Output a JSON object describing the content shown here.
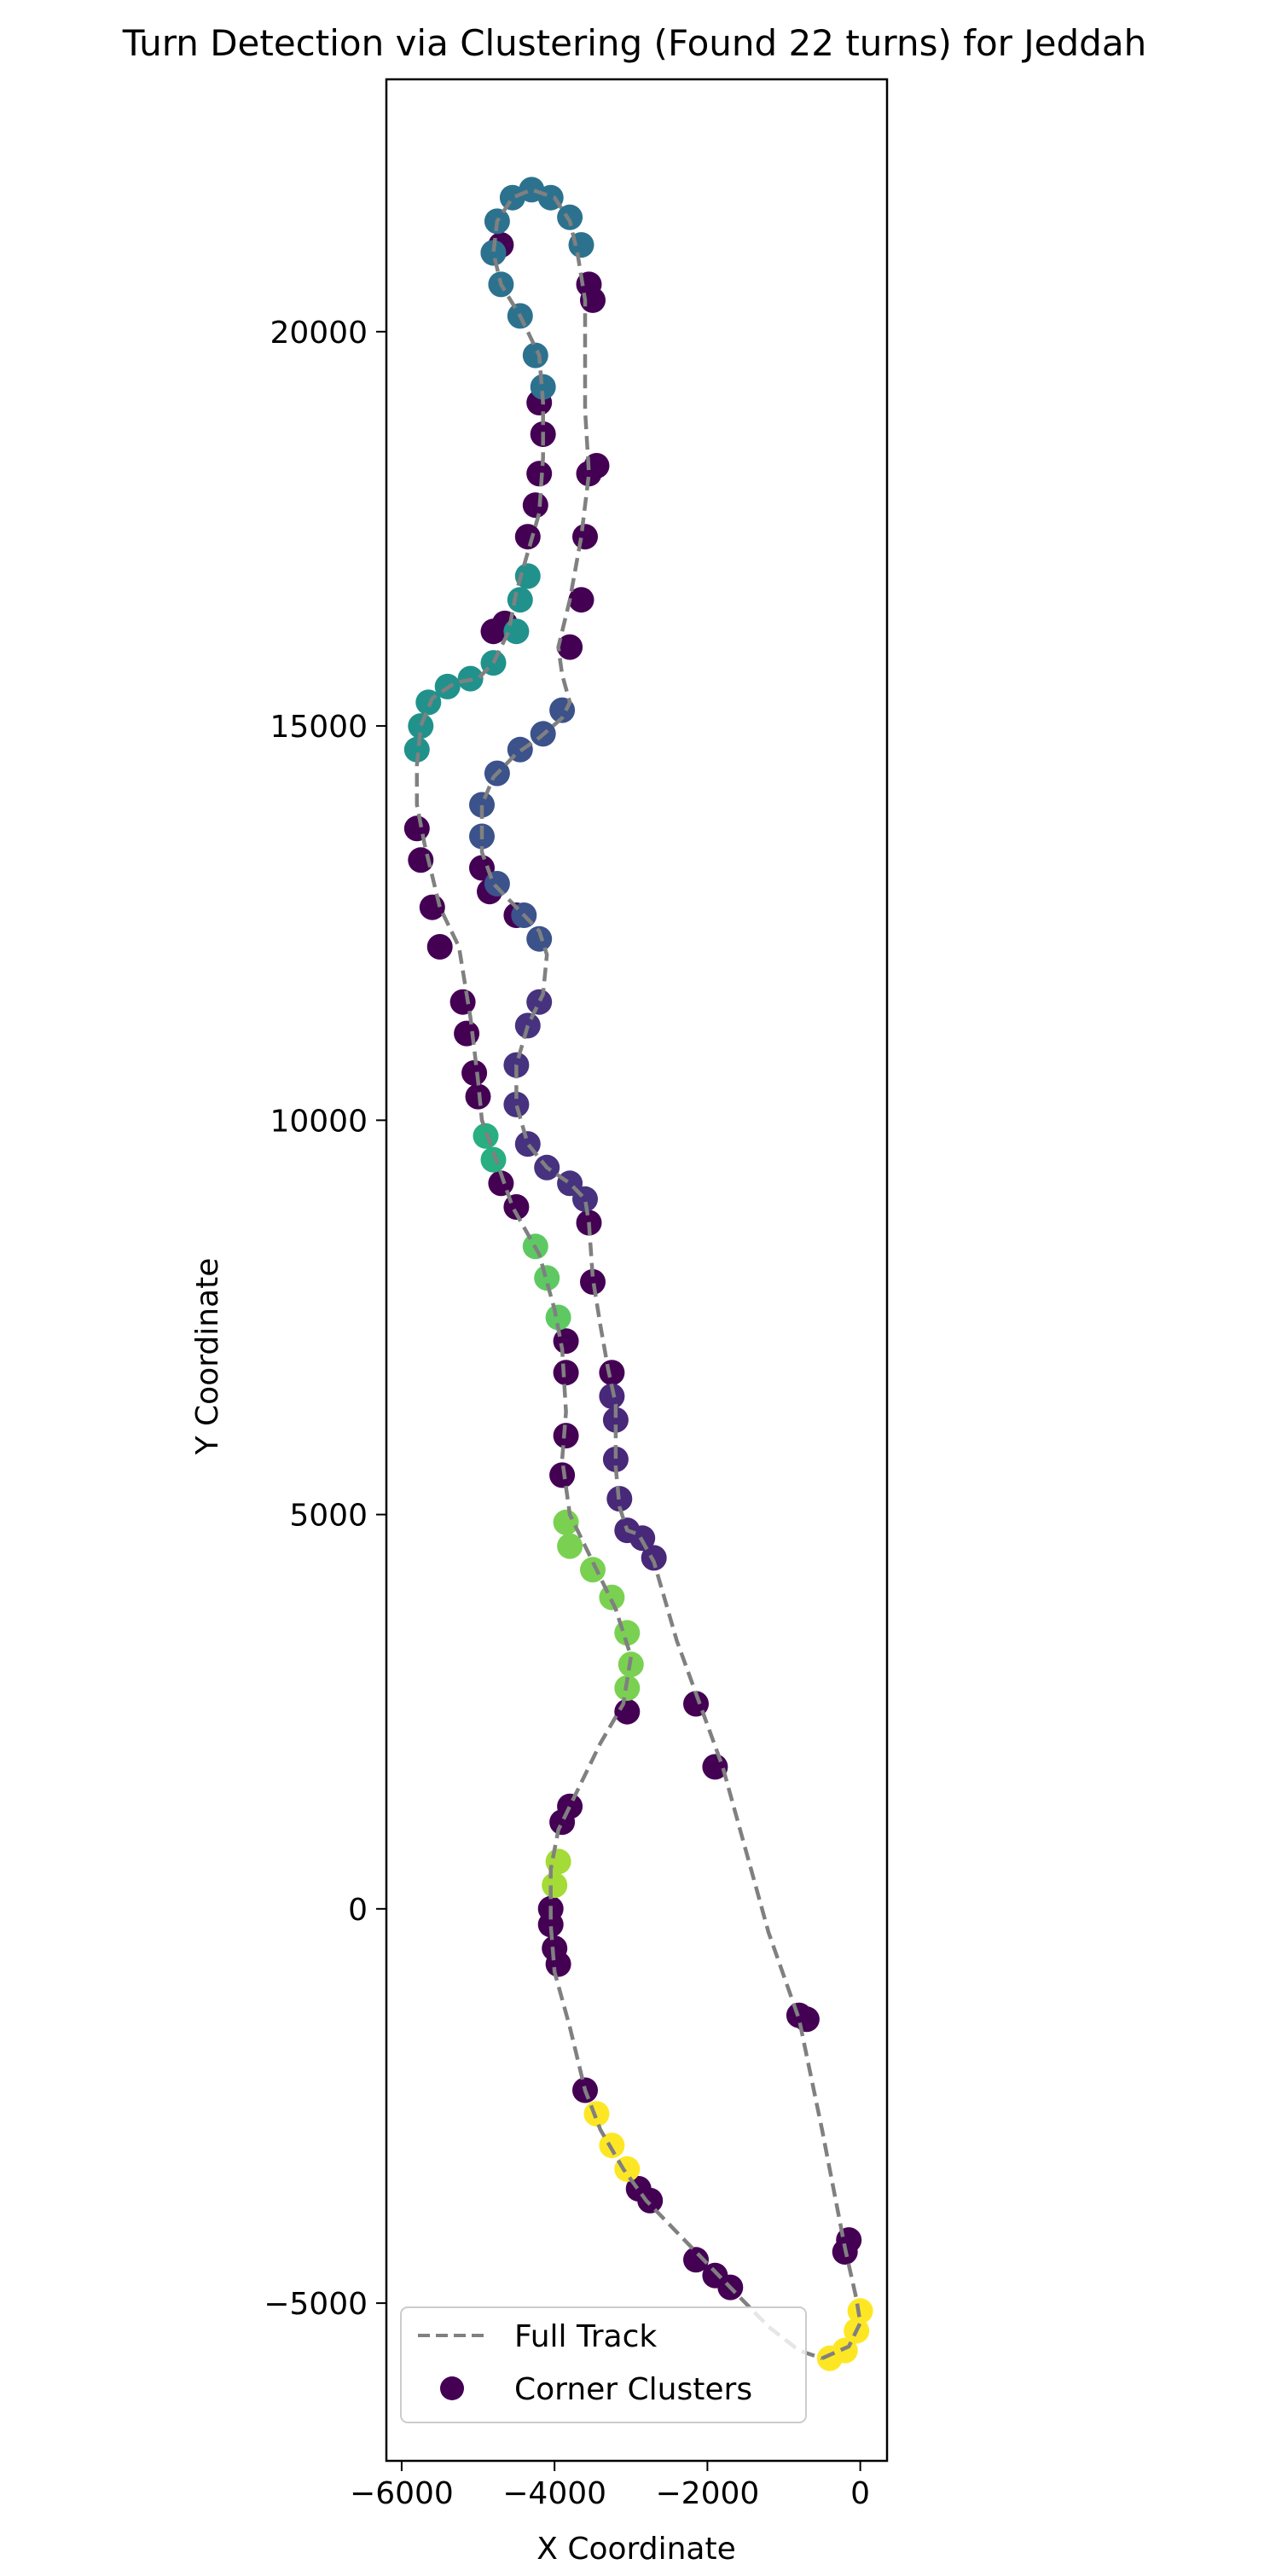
{
  "chart_data": {
    "type": "scatter",
    "title": "Turn Detection via Clustering (Found 22 turns) for Jeddah",
    "xlabel": "X Coordinate",
    "ylabel": "Y Coordinate",
    "xlim": [
      -6200,
      350
    ],
    "ylim": [
      -7000,
      23200
    ],
    "xticks": [
      -6000,
      -4000,
      -2000,
      0
    ],
    "xtick_labels": [
      "−6000",
      "−4000",
      "−2000",
      "0"
    ],
    "yticks": [
      -5000,
      0,
      5000,
      10000,
      15000,
      20000
    ],
    "ytick_labels": [
      "−5000",
      "0",
      "5000",
      "10000",
      "15000",
      "20000"
    ],
    "grid": false,
    "legend": {
      "placement": "lower-left",
      "entries": [
        {
          "label": "Full Track",
          "kind": "dashed-line",
          "color": "#808080"
        },
        {
          "label": "Corner Clusters",
          "kind": "marker",
          "color": "#440154"
        }
      ]
    },
    "track": {
      "name": "Full Track",
      "color": "#808080",
      "points": [
        [
          -500,
          -5700
        ],
        [
          -150,
          -5550
        ],
        [
          0,
          -5250
        ],
        [
          -50,
          -4950
        ],
        [
          -200,
          -4300
        ],
        [
          -500,
          -2800
        ],
        [
          -800,
          -1400
        ],
        [
          -1200,
          -300
        ],
        [
          -1800,
          1800
        ],
        [
          -2100,
          2600
        ],
        [
          -2400,
          3400
        ],
        [
          -2700,
          4400
        ],
        [
          -2900,
          4750
        ],
        [
          -3050,
          4800
        ],
        [
          -3150,
          5100
        ],
        [
          -3200,
          5600
        ],
        [
          -3200,
          6400
        ],
        [
          -3300,
          6850
        ],
        [
          -3400,
          7400
        ],
        [
          -3500,
          8000
        ],
        [
          -3550,
          8700
        ],
        [
          -3600,
          9000
        ],
        [
          -3800,
          9200
        ],
        [
          -4100,
          9400
        ],
        [
          -4350,
          9700
        ],
        [
          -4500,
          10200
        ],
        [
          -4500,
          10700
        ],
        [
          -4350,
          11200
        ],
        [
          -4150,
          11600
        ],
        [
          -4100,
          12100
        ],
        [
          -4200,
          12400
        ],
        [
          -4500,
          12700
        ],
        [
          -4800,
          13000
        ],
        [
          -4950,
          13400
        ],
        [
          -4950,
          14000
        ],
        [
          -4800,
          14350
        ],
        [
          -4500,
          14650
        ],
        [
          -4200,
          14850
        ],
        [
          -3900,
          15100
        ],
        [
          -3800,
          15300
        ],
        [
          -3900,
          15650
        ],
        [
          -3950,
          16000
        ],
        [
          -3800,
          16600
        ],
        [
          -3650,
          17400
        ],
        [
          -3550,
          18200
        ],
        [
          -3600,
          19000
        ],
        [
          -3600,
          19800
        ],
        [
          -3600,
          20400
        ],
        [
          -3700,
          21000
        ],
        [
          -3800,
          21400
        ],
        [
          -4000,
          21700
        ],
        [
          -4300,
          21800
        ],
        [
          -4550,
          21700
        ],
        [
          -4750,
          21400
        ],
        [
          -4800,
          21000
        ],
        [
          -4700,
          20600
        ],
        [
          -4450,
          20200
        ],
        [
          -4200,
          19700
        ],
        [
          -4150,
          19100
        ],
        [
          -4150,
          18400
        ],
        [
          -4200,
          17700
        ],
        [
          -4350,
          17200
        ],
        [
          -4500,
          16700
        ],
        [
          -4600,
          16200
        ],
        [
          -4800,
          15800
        ],
        [
          -5000,
          15600
        ],
        [
          -5300,
          15550
        ],
        [
          -5600,
          15350
        ],
        [
          -5750,
          15000
        ],
        [
          -5800,
          14500
        ],
        [
          -5800,
          14000
        ],
        [
          -5700,
          13500
        ],
        [
          -5500,
          12700
        ],
        [
          -5250,
          12200
        ],
        [
          -5100,
          11300
        ],
        [
          -5000,
          10500
        ],
        [
          -4950,
          10000
        ],
        [
          -4800,
          9600
        ],
        [
          -4550,
          8900
        ],
        [
          -4200,
          8300
        ],
        [
          -4000,
          7600
        ],
        [
          -3900,
          7100
        ],
        [
          -3850,
          6300
        ],
        [
          -3900,
          5700
        ],
        [
          -3800,
          5000
        ],
        [
          -3500,
          4400
        ],
        [
          -3200,
          3800
        ],
        [
          -3000,
          3200
        ],
        [
          -3100,
          2600
        ],
        [
          -3400,
          2100
        ],
        [
          -3700,
          1500
        ],
        [
          -3950,
          1000
        ],
        [
          -4050,
          500
        ],
        [
          -4050,
          -200
        ],
        [
          -4000,
          -800
        ],
        [
          -3800,
          -1500
        ],
        [
          -3600,
          -2300
        ],
        [
          -3400,
          -2800
        ],
        [
          -3100,
          -3300
        ],
        [
          -2800,
          -3700
        ],
        [
          -2400,
          -4100
        ],
        [
          -2000,
          -4500
        ],
        [
          -1600,
          -4900
        ],
        [
          -1200,
          -5300
        ],
        [
          -800,
          -5600
        ],
        [
          -500,
          -5700
        ]
      ]
    },
    "clusters": {
      "name": "Corner Clusters",
      "colormap": "viridis",
      "label_count": 23,
      "groups": [
        {
          "label": 0,
          "color": "#440154",
          "points": [
            [
              -700,
              -1400
            ],
            [
              -800,
              -1350
            ],
            [
              -150,
              -4200
            ],
            [
              -200,
              -4350
            ],
            [
              -1700,
              -4800
            ],
            [
              -1900,
              -4650
            ],
            [
              -2150,
              -4450
            ],
            [
              -2750,
              -3700
            ],
            [
              -2900,
              -3550
            ],
            [
              -3600,
              -2300
            ],
            [
              -4000,
              -500
            ],
            [
              -4050,
              -200
            ],
            [
              -4050,
              0
            ],
            [
              -3950,
              -700
            ],
            [
              -1900,
              1800
            ],
            [
              -2150,
              2600
            ],
            [
              -3900,
              1100
            ],
            [
              -3800,
              1300
            ],
            [
              -3050,
              2500
            ],
            [
              -3250,
              6800
            ],
            [
              -3500,
              7950
            ],
            [
              -3550,
              8700
            ],
            [
              -3850,
              7200
            ],
            [
              -3850,
              6800
            ],
            [
              -3850,
              6000
            ],
            [
              -3900,
              5500
            ],
            [
              -4500,
              8900
            ],
            [
              -4700,
              9200
            ],
            [
              -5000,
              10300
            ],
            [
              -5050,
              10600
            ],
            [
              -5150,
              11100
            ],
            [
              -5200,
              11500
            ],
            [
              -5500,
              12200
            ],
            [
              -5600,
              12700
            ],
            [
              -5750,
              13300
            ],
            [
              -5800,
              13700
            ],
            [
              -4950,
              13200
            ],
            [
              -4850,
              12900
            ],
            [
              -4500,
              12600
            ],
            [
              -4800,
              16200
            ],
            [
              -4650,
              16300
            ],
            [
              -4350,
              17400
            ],
            [
              -4250,
              17800
            ],
            [
              -4200,
              18200
            ],
            [
              -4150,
              18700
            ],
            [
              -4200,
              19100
            ],
            [
              -3800,
              16000
            ],
            [
              -3650,
              16600
            ],
            [
              -3600,
              17400
            ],
            [
              -3550,
              18200
            ],
            [
              -3450,
              18300
            ],
            [
              -3500,
              20400
            ],
            [
              -3550,
              20600
            ],
            [
              -4800,
              21000
            ],
            [
              -4700,
              21100
            ]
          ]
        },
        {
          "label": 5,
          "color": "#482878",
          "points": [
            [
              -2700,
              4450
            ],
            [
              -2850,
              4700
            ],
            [
              -3050,
              4800
            ],
            [
              -3150,
              5200
            ],
            [
              -3200,
              5700
            ],
            [
              -3200,
              6200
            ],
            [
              -3250,
              6500
            ]
          ]
        },
        {
          "label": 7,
          "color": "#46327e",
          "points": [
            [
              -3600,
              9000
            ],
            [
              -3800,
              9200
            ],
            [
              -4100,
              9400
            ],
            [
              -4350,
              9700
            ],
            [
              -4500,
              10200
            ],
            [
              -4500,
              10700
            ],
            [
              -4350,
              11200
            ],
            [
              -4200,
              11500
            ]
          ]
        },
        {
          "label": 10,
          "color": "#3b528b",
          "points": [
            [
              -4200,
              12300
            ],
            [
              -4400,
              12600
            ],
            [
              -4750,
              13000
            ],
            [
              -4950,
              13600
            ],
            [
              -4950,
              14000
            ],
            [
              -4750,
              14400
            ],
            [
              -4450,
              14700
            ],
            [
              -4150,
              14900
            ],
            [
              -3900,
              15200
            ]
          ]
        },
        {
          "label": 13,
          "color": "#2c728e",
          "points": [
            [
              -3650,
              21100
            ],
            [
              -3800,
              21450
            ],
            [
              -4050,
              21700
            ],
            [
              -4300,
              21800
            ],
            [
              -4550,
              21700
            ],
            [
              -4750,
              21400
            ],
            [
              -4800,
              21000
            ],
            [
              -4700,
              20600
            ],
            [
              -4450,
              20200
            ],
            [
              -4250,
              19700
            ],
            [
              -4150,
              19300
            ]
          ]
        },
        {
          "label": 15,
          "color": "#21918c",
          "points": [
            [
              -4500,
              16200
            ],
            [
              -4800,
              15800
            ],
            [
              -5100,
              15600
            ],
            [
              -5400,
              15500
            ],
            [
              -5650,
              15300
            ],
            [
              -5750,
              15000
            ],
            [
              -5800,
              14700
            ],
            [
              -4350,
              16900
            ],
            [
              -4450,
              16600
            ]
          ]
        },
        {
          "label": 16,
          "color": "#28ae80",
          "points": [
            [
              -4900,
              9800
            ],
            [
              -4800,
              9500
            ]
          ]
        },
        {
          "label": 18,
          "color": "#5ec962",
          "points": [
            [
              -4250,
              8400
            ],
            [
              -4100,
              8000
            ],
            [
              -3950,
              7500
            ]
          ]
        },
        {
          "label": 19,
          "color": "#7ad151",
          "points": [
            [
              -3850,
              4900
            ],
            [
              -3800,
              4600
            ],
            [
              -3500,
              4300
            ],
            [
              -3250,
              3950
            ],
            [
              -3050,
              3500
            ],
            [
              -3000,
              3100
            ],
            [
              -3050,
              2800
            ]
          ]
        },
        {
          "label": 20,
          "color": "#a5db36",
          "points": [
            [
              -4000,
              300
            ],
            [
              -3950,
              600
            ]
          ]
        },
        {
          "label": 22,
          "color": "#fde725",
          "points": [
            [
              -3450,
              -2600
            ],
            [
              -3250,
              -3000
            ],
            [
              -3050,
              -3300
            ],
            [
              -400,
              -5700
            ],
            [
              -200,
              -5600
            ],
            [
              -50,
              -5350
            ],
            [
              0,
              -5100
            ]
          ]
        }
      ]
    }
  }
}
